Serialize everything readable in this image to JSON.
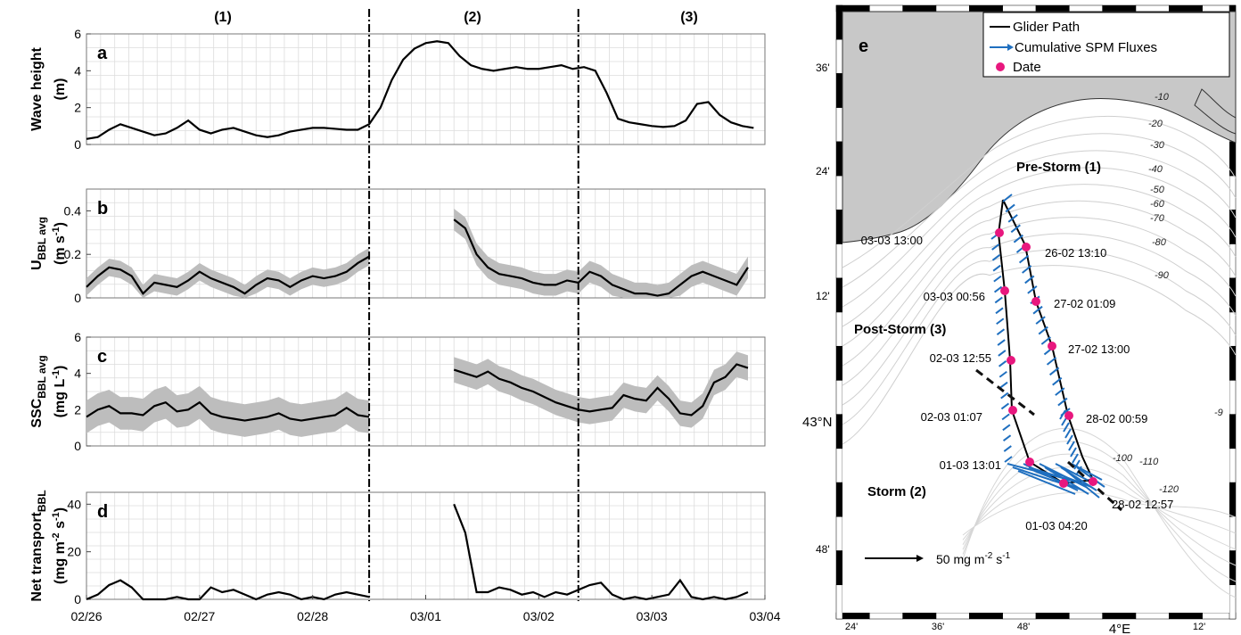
{
  "figure": {
    "phase_labels": [
      "(1)",
      "(2)",
      "(3)"
    ],
    "x_tick_labels": [
      "02/26",
      "02/27",
      "02/28",
      "03/01",
      "03/02",
      "03/03",
      "03/04"
    ],
    "panel_letters": [
      "a",
      "b",
      "c",
      "d",
      "e"
    ],
    "colors": {
      "line": "#000000",
      "band": "#bdbdbd",
      "grid": "#dcdcdc",
      "arrow": "#1f6fbf",
      "date_marker": "#e8177e",
      "land": "#c8c8c8"
    }
  },
  "chart_data": [
    {
      "id": "a",
      "type": "line",
      "ylabel": [
        "Wave height",
        "(m)"
      ],
      "ylim": [
        0,
        6
      ],
      "yticks": [
        0,
        2,
        4,
        6
      ],
      "x_unit": "days since 02/26 00:00",
      "series": [
        {
          "x": [
            0,
            0.1,
            0.2,
            0.3,
            0.4,
            0.5,
            0.6,
            0.7,
            0.8,
            0.9,
            1.0,
            1.1,
            1.2,
            1.3,
            1.4,
            1.5,
            1.6,
            1.7,
            1.8,
            1.9,
            2.0,
            2.1,
            2.2,
            2.3,
            2.4,
            2.5,
            2.6,
            2.7,
            2.8,
            2.9,
            3.0,
            3.1,
            3.2,
            3.3,
            3.4,
            3.5,
            3.6,
            3.7,
            3.8,
            3.9,
            4.0,
            4.1,
            4.2,
            4.3,
            4.4,
            4.5,
            4.6,
            4.7,
            4.8,
            4.9,
            5.0,
            5.1,
            5.2,
            5.3,
            5.4,
            5.5,
            5.6,
            5.7,
            5.8,
            5.9
          ],
          "y": [
            0.3,
            0.4,
            0.8,
            1.1,
            0.9,
            0.7,
            0.5,
            0.6,
            0.9,
            1.3,
            0.8,
            0.6,
            0.8,
            0.9,
            0.7,
            0.5,
            0.4,
            0.5,
            0.7,
            0.8,
            0.9,
            0.9,
            0.85,
            0.8,
            0.8,
            1.1,
            2.0,
            3.5,
            4.6,
            5.2,
            5.5,
            5.6,
            5.5,
            4.8,
            4.3,
            4.1,
            4.0,
            4.1,
            4.2,
            4.1,
            4.1,
            4.2,
            4.3,
            4.1,
            4.2,
            4.0,
            2.8,
            1.4,
            1.2,
            1.1,
            1.0,
            0.95,
            1.0,
            1.3,
            2.2,
            2.3,
            1.6,
            1.2,
            1.0,
            0.9
          ]
        }
      ]
    },
    {
      "id": "b",
      "type": "line",
      "ylabel_main": "U",
      "ylabel_sub": "BBL avg",
      "ylabel_units": [
        "(m s",
        "-1",
        ")"
      ],
      "ylim": [
        0,
        0.5
      ],
      "yticks": [
        0,
        0.2,
        0.4
      ],
      "series": [
        {
          "x": [
            0,
            0.1,
            0.2,
            0.3,
            0.4,
            0.5,
            0.6,
            0.7,
            0.8,
            0.9,
            1.0,
            1.1,
            1.2,
            1.3,
            1.4,
            1.5,
            1.6,
            1.7,
            1.8,
            1.9,
            2.0,
            2.1,
            2.2,
            2.3,
            2.4,
            2.5
          ],
          "y": [
            0.05,
            0.1,
            0.14,
            0.13,
            0.1,
            0.02,
            0.07,
            0.06,
            0.05,
            0.08,
            0.12,
            0.09,
            0.07,
            0.05,
            0.02,
            0.06,
            0.09,
            0.08,
            0.05,
            0.08,
            0.1,
            0.09,
            0.1,
            0.12,
            0.16,
            0.19
          ],
          "band": 0.04
        },
        {
          "x": [
            3.25,
            3.35,
            3.45,
            3.55,
            3.65,
            3.75,
            3.85,
            3.95,
            4.05,
            4.15,
            4.25,
            4.35,
            4.45,
            4.55,
            4.65,
            4.75,
            4.85,
            4.95,
            5.05,
            5.15,
            5.25,
            5.35,
            5.45,
            5.55,
            5.65,
            5.75,
            5.85
          ],
          "y": [
            0.36,
            0.32,
            0.2,
            0.14,
            0.11,
            0.1,
            0.09,
            0.07,
            0.06,
            0.06,
            0.08,
            0.07,
            0.12,
            0.1,
            0.06,
            0.04,
            0.02,
            0.02,
            0.01,
            0.02,
            0.06,
            0.1,
            0.12,
            0.1,
            0.08,
            0.06,
            0.14
          ],
          "band": 0.05
        }
      ]
    },
    {
      "id": "c",
      "type": "line",
      "ylabel_main": "SSC",
      "ylabel_sub": "BBL avg",
      "ylabel_units": [
        "(mg L",
        "-1",
        ")"
      ],
      "ylim": [
        0,
        6
      ],
      "yticks": [
        0,
        2,
        4,
        6
      ],
      "series": [
        {
          "x": [
            0,
            0.1,
            0.2,
            0.3,
            0.4,
            0.5,
            0.6,
            0.7,
            0.8,
            0.9,
            1.0,
            1.1,
            1.2,
            1.3,
            1.4,
            1.5,
            1.6,
            1.7,
            1.8,
            1.9,
            2.0,
            2.1,
            2.2,
            2.3,
            2.4,
            2.5
          ],
          "y": [
            1.6,
            2.0,
            2.2,
            1.8,
            1.8,
            1.7,
            2.2,
            2.4,
            1.9,
            2.0,
            2.4,
            1.8,
            1.6,
            1.5,
            1.4,
            1.5,
            1.6,
            1.8,
            1.5,
            1.4,
            1.5,
            1.6,
            1.7,
            2.1,
            1.7,
            1.6
          ],
          "band": 0.9
        },
        {
          "x": [
            3.25,
            3.35,
            3.45,
            3.55,
            3.65,
            3.75,
            3.85,
            3.95,
            4.05,
            4.15,
            4.25,
            4.35,
            4.45,
            4.55,
            4.65,
            4.75,
            4.85,
            4.95,
            5.05,
            5.15,
            5.25,
            5.35,
            5.45,
            5.55,
            5.65,
            5.75,
            5.85
          ],
          "y": [
            4.2,
            4.0,
            3.8,
            4.1,
            3.7,
            3.5,
            3.2,
            3.0,
            2.7,
            2.4,
            2.2,
            2.0,
            1.9,
            2.0,
            2.1,
            2.8,
            2.6,
            2.5,
            3.2,
            2.6,
            1.8,
            1.7,
            2.2,
            3.5,
            3.8,
            4.5,
            4.3
          ],
          "band": 0.7
        }
      ]
    },
    {
      "id": "d",
      "type": "line",
      "ylabel": [
        "Net transport",
        "(mg m",
        ")"
      ],
      "ylabel_parts": {
        "main": "Net transport",
        "sub": "BBL",
        "units_pre": "(mg m",
        "sup1": "-2",
        "mid": " s",
        "sup2": "-1",
        "units_post": ")"
      },
      "ylim": [
        0,
        45
      ],
      "yticks": [
        0,
        20,
        40
      ],
      "series": [
        {
          "x": [
            0,
            0.1,
            0.2,
            0.3,
            0.4,
            0.5,
            0.6,
            0.7,
            0.8,
            0.9,
            1.0,
            1.1,
            1.2,
            1.3,
            1.4,
            1.5,
            1.6,
            1.7,
            1.8,
            1.9,
            2.0,
            2.1,
            2.2,
            2.3,
            2.4,
            2.5
          ],
          "y": [
            0,
            2,
            6,
            8,
            5,
            0,
            0,
            0,
            1,
            0,
            0,
            5,
            3,
            4,
            2,
            0,
            2,
            3,
            2,
            0,
            1,
            0,
            2,
            3,
            2,
            1
          ]
        },
        {
          "x": [
            3.25,
            3.35,
            3.45,
            3.55,
            3.65,
            3.75,
            3.85,
            3.95,
            4.05,
            4.15,
            4.25,
            4.35,
            4.45,
            4.55,
            4.65,
            4.75,
            4.85,
            4.95,
            5.05,
            5.15,
            5.25,
            5.35,
            5.45,
            5.55,
            5.65,
            5.75,
            5.85
          ],
          "y": [
            40,
            28,
            3,
            3,
            5,
            4,
            2,
            3,
            1,
            3,
            2,
            4,
            6,
            7,
            2,
            0,
            1,
            0,
            1,
            2,
            8,
            1,
            0,
            1,
            0,
            1,
            3
          ]
        }
      ]
    },
    {
      "id": "e",
      "type": "map",
      "legend": [
        "Glider Path",
        "Cumulative SPM Fluxes",
        "Date"
      ],
      "phase_labels": [
        "Pre-Storm (1)",
        "Post-Storm (3)",
        "Storm (2)"
      ],
      "lat_ticks": [
        "36'",
        "24'",
        "12'",
        "43°N",
        "48'"
      ],
      "lon_ticks": [
        "24'",
        "36'",
        "48'",
        "4°E",
        "12'"
      ],
      "depth_labels": [
        "-10",
        "-20",
        "-30",
        "-40",
        "-50",
        "-60",
        "-70",
        "-80",
        "-90",
        "-100",
        "-110",
        "-120",
        "-9"
      ],
      "date_labels": [
        "03-03 13:00",
        "26-02 13:10",
        "03-03 00:56",
        "27-02 01:09",
        "27-02 13:00",
        "02-03 12:55",
        "02-03 01:07",
        "28-02 00:59",
        "01-03 13:01",
        "28-02 12:57",
        "01-03 04:20"
      ],
      "scale_label": "50 mg m",
      "scale_sup": "-2",
      "scale_tail": " s",
      "scale_sup2": "-1"
    }
  ]
}
